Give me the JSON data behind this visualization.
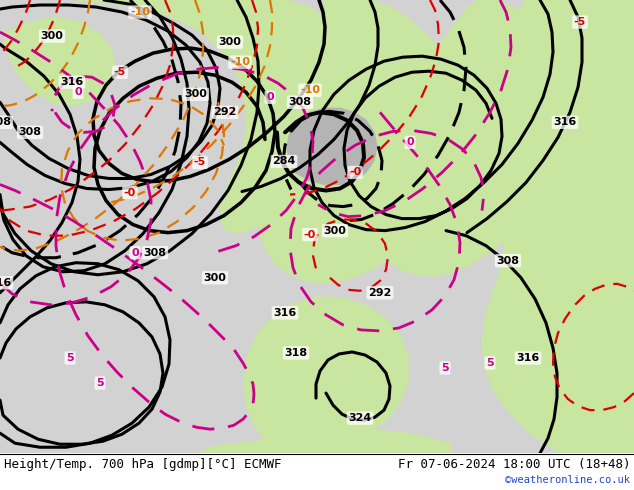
{
  "title_left": "Height/Temp. 700 hPa [gdmp][°C] ECMWF",
  "title_right": "Fr 07-06-2024 18:00 UTC (18+48)",
  "watermark": "©weatheronline.co.uk",
  "bg_ocean": "#d2d2d2",
  "bg_land_green": "#c8e6a0",
  "bg_land_gray": "#b4b4b4",
  "geo_color": "#000000",
  "temp_red_color": "#dd0000",
  "temp_orange_color": "#dd7700",
  "temp_magenta_color": "#cc0088",
  "footer_bg": "#ffffff",
  "font_size_footer": 9,
  "font_size_labels": 8
}
